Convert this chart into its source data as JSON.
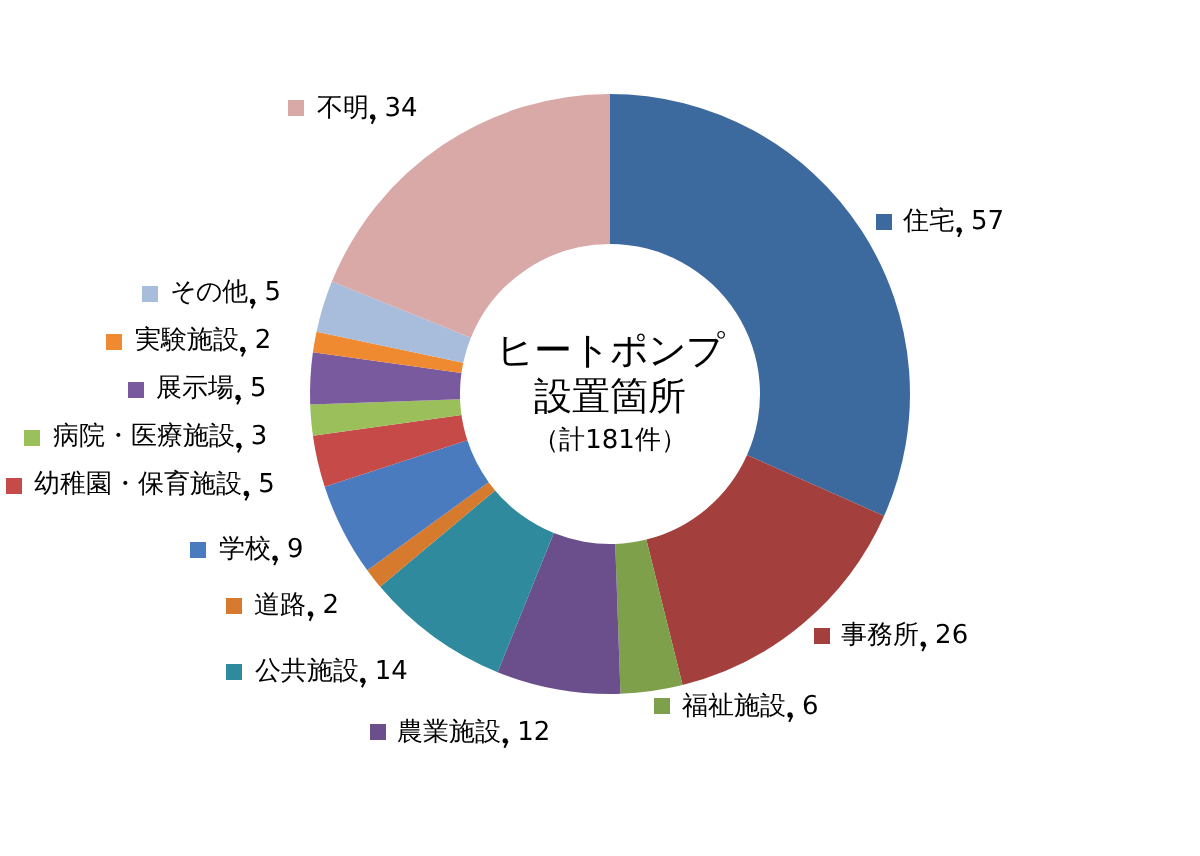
{
  "chart_data": {
    "type": "donut",
    "title": "ヒートポンプ設置箇所",
    "subtitle": "（計181件）",
    "categories": [
      "住宅",
      "事務所",
      "福祉施設",
      "農業施設",
      "公共施設",
      "道路",
      "学校",
      "幼稚園・保育施設",
      "病院・医療施設",
      "展示場",
      "実験施設",
      "その他",
      "不明"
    ],
    "values": [
      57,
      26,
      6,
      12,
      14,
      2,
      9,
      5,
      3,
      5,
      2,
      5,
      34
    ],
    "colors": [
      "#3d6a9e",
      "#a33f3c",
      "#7fa04a",
      "#6a4f8c",
      "#2f8a9e",
      "#d67a2e",
      "#4a7bbf",
      "#c64a48",
      "#9bbf5a",
      "#7a5a9e",
      "#f08a30",
      "#a8bcdc",
      "#d9a9a8"
    ],
    "data_labels": true,
    "legend": "left"
  }
}
